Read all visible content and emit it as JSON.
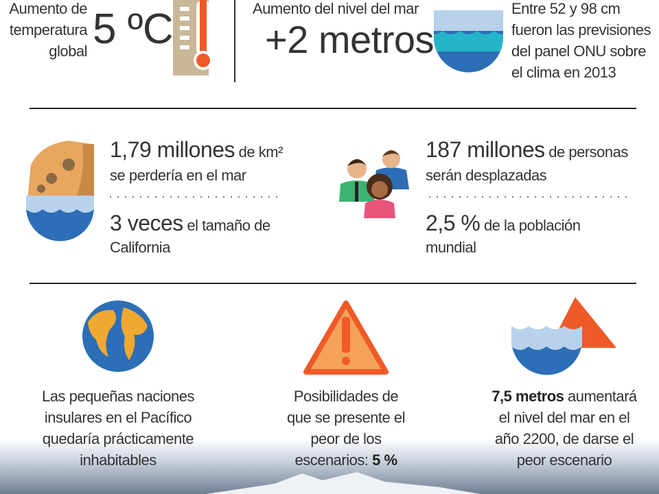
{
  "top": {
    "temperature": {
      "label": [
        "Aumento de",
        "temperatura",
        "global"
      ],
      "value": "5 ºC"
    },
    "sea_level": {
      "label": "Aumento del nivel del mar",
      "value": "+2 metros"
    },
    "forecast": [
      "Entre 52 y 98 cm",
      "fueron las previsiones",
      "del panel ONU sobre",
      "el clima en 2013"
    ]
  },
  "middle": {
    "land": {
      "value": "1,79 millones",
      "unit": " de km²",
      "line2": "se perdería en el mar",
      "compare_value": "3 veces",
      "compare_text": " el tamaño de",
      "line4": "California"
    },
    "people": {
      "value": "187 millones",
      "unit": " de personas",
      "line2": "serán desplazadas",
      "compare_value": "2,5 %",
      "compare_text": " de la población",
      "line4": "mundial"
    }
  },
  "bottom": {
    "islands": [
      "Las pequeñas naciones",
      "insulares en el Pacífico",
      "quedaría prácticamente",
      "inhabitables"
    ],
    "worst_case": {
      "lines": [
        "Posibilidades de",
        "que se presente el",
        "peor de los"
      ],
      "last_text": "escenarios: ",
      "last_value": "5 %"
    },
    "sea_rise": {
      "value": "7,5 metros",
      "line1_rest": " aumentará",
      "lines": [
        "el nivel del mar en el",
        "año 2200, de darse el",
        "peor escenario"
      ]
    }
  }
}
